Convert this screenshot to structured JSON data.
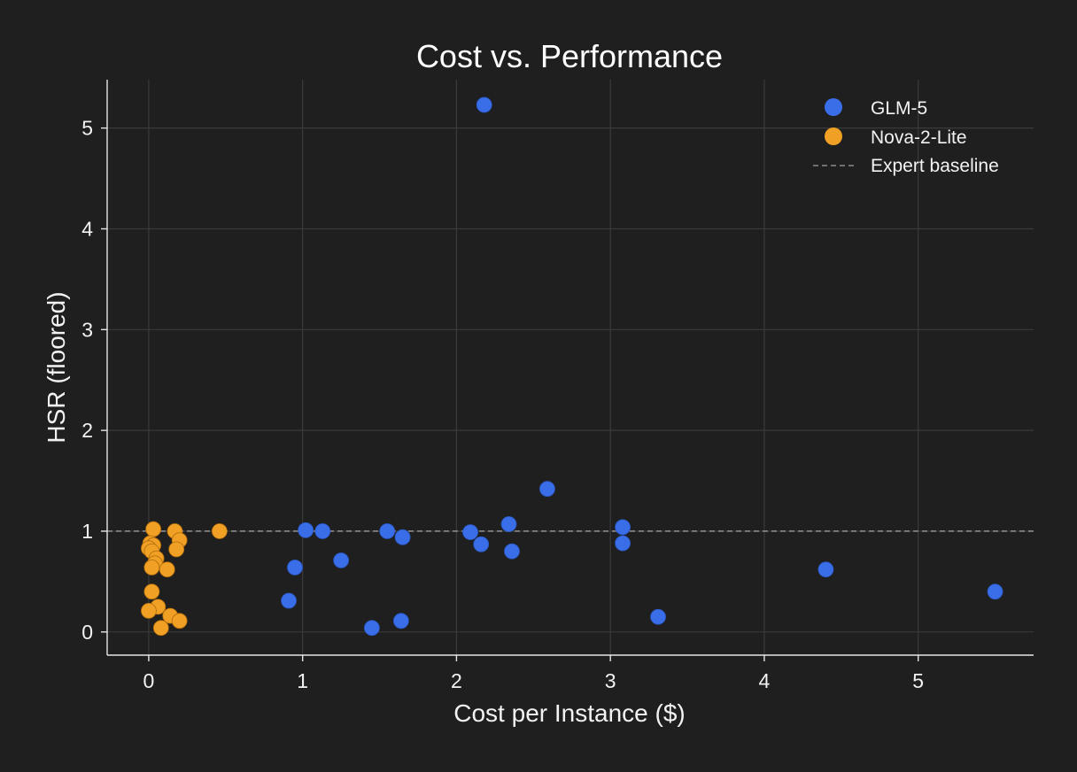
{
  "chart_data": {
    "type": "scatter",
    "title": "Cost vs. Performance",
    "xlabel": "Cost per Instance ($)",
    "ylabel": "HSR (floored)",
    "xlim": [
      -0.27,
      5.75
    ],
    "ylim": [
      -0.23,
      5.48
    ],
    "xticks": [
      0,
      1,
      2,
      3,
      4,
      5
    ],
    "yticks": [
      0,
      1,
      2,
      3,
      4,
      5
    ],
    "grid": true,
    "legend_position": "top-right",
    "reference_line": {
      "label": "Expert baseline",
      "y": 1,
      "style": "dashed",
      "color": "#8a8a8a"
    },
    "series": [
      {
        "name": "GLM-5",
        "color": "#3a6ee8",
        "points": [
          {
            "x": 2.18,
            "y": 5.23
          },
          {
            "x": 2.59,
            "y": 1.42
          },
          {
            "x": 2.34,
            "y": 1.07
          },
          {
            "x": 3.08,
            "y": 1.04
          },
          {
            "x": 1.02,
            "y": 1.01
          },
          {
            "x": 1.13,
            "y": 1.0
          },
          {
            "x": 1.55,
            "y": 1.0
          },
          {
            "x": 2.09,
            "y": 0.99
          },
          {
            "x": 1.65,
            "y": 0.94
          },
          {
            "x": 3.08,
            "y": 0.88
          },
          {
            "x": 2.16,
            "y": 0.87
          },
          {
            "x": 2.36,
            "y": 0.8
          },
          {
            "x": 1.25,
            "y": 0.71
          },
          {
            "x": 0.95,
            "y": 0.64
          },
          {
            "x": 4.4,
            "y": 0.62
          },
          {
            "x": 5.5,
            "y": 0.4
          },
          {
            "x": 0.91,
            "y": 0.31
          },
          {
            "x": 3.31,
            "y": 0.15
          },
          {
            "x": 1.64,
            "y": 0.11
          },
          {
            "x": 1.45,
            "y": 0.04
          }
        ]
      },
      {
        "name": "Nova-2-Lite",
        "color": "#f0a024",
        "points": [
          {
            "x": 0.03,
            "y": 1.02
          },
          {
            "x": 0.17,
            "y": 1.0
          },
          {
            "x": 0.46,
            "y": 1.0
          },
          {
            "x": 0.2,
            "y": 0.91
          },
          {
            "x": 0.01,
            "y": 0.88
          },
          {
            "x": 0.03,
            "y": 0.86
          },
          {
            "x": 0.0,
            "y": 0.83
          },
          {
            "x": 0.18,
            "y": 0.82
          },
          {
            "x": 0.02,
            "y": 0.8
          },
          {
            "x": 0.05,
            "y": 0.73
          },
          {
            "x": 0.04,
            "y": 0.68
          },
          {
            "x": 0.02,
            "y": 0.64
          },
          {
            "x": 0.12,
            "y": 0.62
          },
          {
            "x": 0.02,
            "y": 0.4
          },
          {
            "x": 0.06,
            "y": 0.25
          },
          {
            "x": 0.0,
            "y": 0.21
          },
          {
            "x": 0.14,
            "y": 0.16
          },
          {
            "x": 0.2,
            "y": 0.11
          },
          {
            "x": 0.08,
            "y": 0.04
          }
        ]
      }
    ]
  }
}
